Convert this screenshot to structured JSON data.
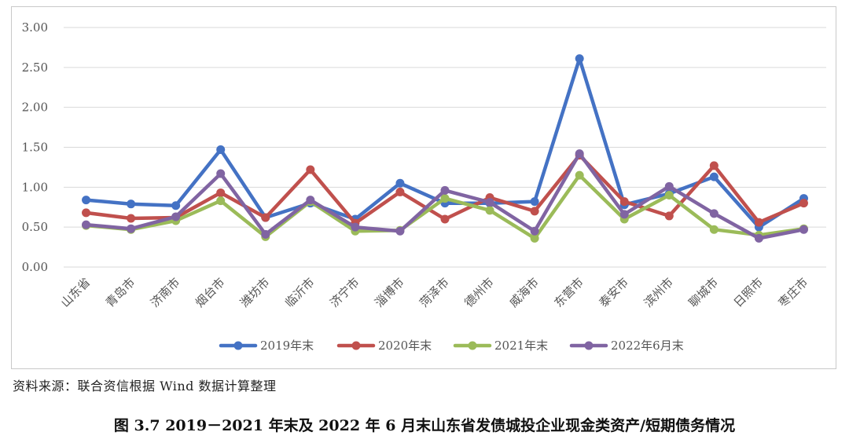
{
  "source_note": "资料来源：联合资信根据 Wind 数据计算整理",
  "caption": "图 3.7    2019－2021 年末及 2022 年 6 月末山东省发债城投企业现金类资产/短期债务情况",
  "chart_data": {
    "type": "line",
    "title": "",
    "xlabel": "",
    "ylabel": "",
    "ylim": [
      0,
      3
    ],
    "yticks": [
      "0.00",
      "0.50",
      "1.00",
      "1.50",
      "2.00",
      "2.50",
      "3.00"
    ],
    "grid": "horizontal",
    "legend_position": "bottom",
    "categories": [
      "山东省",
      "青岛市",
      "济南市",
      "烟台市",
      "潍坊市",
      "临沂市",
      "济宁市",
      "淄博市",
      "菏泽市",
      "德州市",
      "威海市",
      "东营市",
      "泰安市",
      "滨州市",
      "聊城市",
      "日照市",
      "枣庄市"
    ],
    "series": [
      {
        "name": "2019年末",
        "color": "#4472C4",
        "values": [
          0.84,
          0.79,
          0.77,
          1.47,
          0.62,
          0.8,
          0.6,
          1.05,
          0.8,
          0.8,
          0.82,
          2.61,
          0.78,
          0.92,
          1.13,
          0.5,
          0.86
        ]
      },
      {
        "name": "2020年末",
        "color": "#C0504D",
        "values": [
          0.68,
          0.61,
          0.62,
          0.93,
          0.62,
          1.22,
          0.55,
          0.94,
          0.6,
          0.87,
          0.7,
          1.4,
          0.82,
          0.64,
          1.27,
          0.56,
          0.8
        ]
      },
      {
        "name": "2021年末",
        "color": "#9BBB59",
        "values": [
          0.52,
          0.47,
          0.58,
          0.83,
          0.38,
          0.82,
          0.45,
          0.46,
          0.86,
          0.71,
          0.36,
          1.15,
          0.6,
          0.9,
          0.47,
          0.4,
          0.48
        ]
      },
      {
        "name": "2022年6月末",
        "color": "#8064A2",
        "values": [
          0.53,
          0.48,
          0.63,
          1.17,
          0.41,
          0.84,
          0.5,
          0.45,
          0.96,
          0.81,
          0.45,
          1.42,
          0.66,
          1.01,
          0.67,
          0.36,
          0.47
        ]
      }
    ]
  }
}
